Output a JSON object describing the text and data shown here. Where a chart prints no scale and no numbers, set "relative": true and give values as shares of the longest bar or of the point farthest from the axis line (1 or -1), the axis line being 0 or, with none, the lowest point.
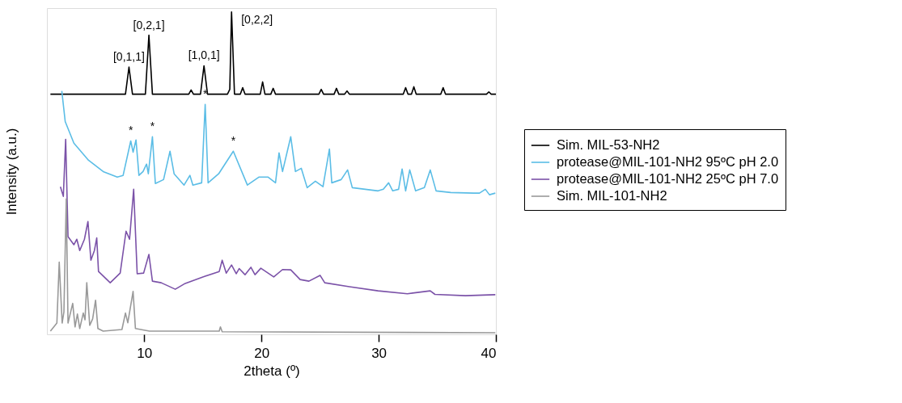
{
  "chart_data": {
    "type": "line",
    "relative": true,
    "xlabel": "2theta (º)",
    "ylabel": "Intensity (a.u.)",
    "xlim": [
      1.7,
      40
    ],
    "xticks": [
      10,
      20,
      30,
      40
    ],
    "tick_labels": "x",
    "grid": false,
    "legend": "right",
    "series": [
      {
        "name": "Sim. MIL-53-NH2",
        "color": "#000000",
        "x": [
          2.0,
          8.4,
          8.7,
          9.0,
          10.1,
          10.4,
          10.7,
          13.8,
          14.0,
          14.2,
          14.8,
          15.1,
          15.4,
          17.1,
          17.3,
          17.45,
          17.7,
          18.2,
          18.4,
          18.6,
          19.9,
          20.1,
          20.3,
          20.8,
          21.0,
          21.2,
          24.9,
          25.1,
          25.3,
          26.2,
          26.4,
          26.6,
          27.1,
          27.3,
          27.5,
          32.1,
          32.3,
          32.5,
          32.8,
          33.0,
          33.2,
          35.3,
          35.5,
          35.7,
          39.2,
          39.4,
          39.6,
          40.0
        ],
        "values": [
          0.745,
          0.745,
          0.829,
          0.745,
          0.745,
          0.928,
          0.745,
          0.745,
          0.758,
          0.745,
          0.745,
          0.833,
          0.745,
          0.745,
          0.76,
          1.0,
          0.745,
          0.745,
          0.765,
          0.745,
          0.745,
          0.783,
          0.745,
          0.745,
          0.763,
          0.745,
          0.745,
          0.76,
          0.745,
          0.745,
          0.763,
          0.745,
          0.745,
          0.755,
          0.745,
          0.745,
          0.765,
          0.745,
          0.745,
          0.768,
          0.745,
          0.745,
          0.765,
          0.745,
          0.745,
          0.752,
          0.745,
          0.745
        ]
      },
      {
        "name": "protease@MIL-101-NH2 95ºC pH 2.0",
        "color": "#5bbde6",
        "x": [
          2.97,
          3.26,
          4.0,
          5.25,
          6.5,
          7.7,
          8.2,
          8.85,
          9.05,
          9.3,
          9.55,
          9.9,
          10.2,
          10.35,
          10.7,
          10.95,
          11.65,
          12.2,
          12.55,
          13.4,
          13.9,
          14.15,
          14.9,
          15.2,
          15.45,
          16.35,
          17.6,
          18.8,
          19.8,
          20.55,
          21.2,
          21.5,
          21.8,
          22.5,
          22.9,
          23.4,
          23.9,
          24.6,
          25.25,
          25.8,
          26.0,
          26.8,
          27.35,
          27.75,
          29.95,
          30.4,
          30.85,
          31.2,
          31.7,
          32.0,
          32.3,
          32.65,
          33.15,
          33.9,
          34.4,
          34.9,
          36.15,
          38.1,
          38.6,
          39.1,
          39.45,
          39.95
        ],
        "values": [
          0.755,
          0.66,
          0.593,
          0.54,
          0.505,
          0.488,
          0.493,
          0.6,
          0.565,
          0.603,
          0.493,
          0.505,
          0.528,
          0.498,
          0.613,
          0.468,
          0.48,
          0.568,
          0.498,
          0.463,
          0.493,
          0.463,
          0.47,
          0.713,
          0.47,
          0.498,
          0.568,
          0.463,
          0.488,
          0.488,
          0.47,
          0.563,
          0.505,
          0.613,
          0.505,
          0.515,
          0.455,
          0.475,
          0.458,
          0.575,
          0.47,
          0.48,
          0.51,
          0.455,
          0.445,
          0.45,
          0.47,
          0.445,
          0.45,
          0.513,
          0.445,
          0.51,
          0.445,
          0.455,
          0.51,
          0.445,
          0.44,
          0.438,
          0.438,
          0.45,
          0.433,
          0.438
        ]
      },
      {
        "name": "protease@MIL-101-NH2 25ºC pH 7.0",
        "color": "#7b52a8",
        "x": [
          2.85,
          3.1,
          3.3,
          3.5,
          4.0,
          4.25,
          4.5,
          4.9,
          5.2,
          5.45,
          5.75,
          5.95,
          6.1,
          7.1,
          7.95,
          8.45,
          8.75,
          9.1,
          9.4,
          9.95,
          10.4,
          10.7,
          11.45,
          12.65,
          13.5,
          15.0,
          16.4,
          16.65,
          17.0,
          17.45,
          17.85,
          18.1,
          18.6,
          19.1,
          19.45,
          19.95,
          21.05,
          21.8,
          22.5,
          23.3,
          24.05,
          25.0,
          25.4,
          27.5,
          29.95,
          32.45,
          34.4,
          34.8,
          37.4,
          39.95
        ],
        "values": [
          0.458,
          0.428,
          0.605,
          0.303,
          0.278,
          0.295,
          0.26,
          0.295,
          0.35,
          0.23,
          0.26,
          0.299,
          0.195,
          0.16,
          0.19,
          0.32,
          0.295,
          0.45,
          0.188,
          0.19,
          0.248,
          0.165,
          0.16,
          0.14,
          0.158,
          0.178,
          0.195,
          0.23,
          0.19,
          0.215,
          0.188,
          0.204,
          0.185,
          0.208,
          0.185,
          0.205,
          0.178,
          0.201,
          0.2,
          0.17,
          0.165,
          0.183,
          0.16,
          0.148,
          0.135,
          0.126,
          0.135,
          0.124,
          0.12,
          0.123
        ]
      },
      {
        "name": "Sim. MIL-101-NH2",
        "color": "#999999",
        "x": [
          2.0,
          2.55,
          2.75,
          3.0,
          3.15,
          3.35,
          3.5,
          3.9,
          4.1,
          4.3,
          4.5,
          4.8,
          4.95,
          5.1,
          5.35,
          5.6,
          5.85,
          6.05,
          6.5,
          8.1,
          8.4,
          8.6,
          9.05,
          9.25,
          10.45,
          16.4,
          16.5,
          16.65,
          39.95
        ],
        "values": [
          0.01,
          0.035,
          0.224,
          0.035,
          0.07,
          0.42,
          0.035,
          0.096,
          0.023,
          0.063,
          0.018,
          0.066,
          0.045,
          0.16,
          0.028,
          0.048,
          0.106,
          0.018,
          0.01,
          0.015,
          0.066,
          0.036,
          0.133,
          0.018,
          0.01,
          0.01,
          0.023,
          0.008,
          0.005
        ]
      }
    ],
    "annotations": [
      {
        "text": "[0,1,1]",
        "x": 8.7,
        "y": 0.829
      },
      {
        "text": "[0,2,1]",
        "x": 10.4,
        "y": 0.928
      },
      {
        "text": "[1,0,1]",
        "x": 15.1,
        "y": 0.833
      },
      {
        "text": "[0,2,2]",
        "x": 17.45,
        "y": 1.0
      },
      {
        "text": "*",
        "x": 8.85,
        "y": 0.6
      },
      {
        "text": "*",
        "x": 10.7,
        "y": 0.613
      },
      {
        "text": "*",
        "x": 15.2,
        "y": 0.713
      },
      {
        "text": "*",
        "x": 17.6,
        "y": 0.568
      }
    ]
  }
}
